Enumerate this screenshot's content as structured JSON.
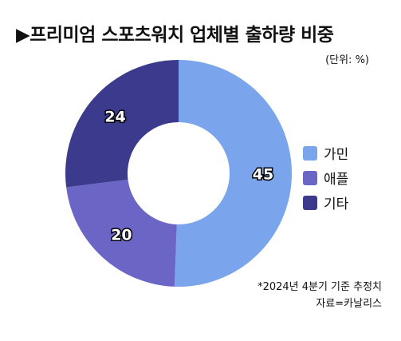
{
  "title": "▶프리미엄 스포츠워치 업체별 출하량 비중",
  "unit": "(단위: %)",
  "colors": {
    "가민": "#7aa5ec",
    "애플": "#6b66c6",
    "기타": "#3b3a8c"
  },
  "legend": [
    {
      "label": "가민",
      "color": "#7aa5ec"
    },
    {
      "label": "애플",
      "color": "#6b66c6"
    },
    {
      "label": "기타",
      "color": "#3b3a8c"
    }
  ],
  "notes": {
    "line1": "*2024년 4분기 기준 추정치",
    "line2": "자료=카날리스"
  },
  "chart_data": {
    "type": "pie",
    "donut": true,
    "title": "▶프리미엄 스포츠워치 업체별 출하량 비중",
    "unit": "(단위: %)",
    "categories": [
      "가민",
      "애플",
      "기타"
    ],
    "values": [
      45,
      20,
      24
    ],
    "value_labels": [
      "45",
      "20",
      "24"
    ],
    "colors": [
      "#7aa5ec",
      "#6b66c6",
      "#3b3a8c"
    ],
    "start": "top",
    "direction": "clockwise",
    "legend_position": "right"
  }
}
